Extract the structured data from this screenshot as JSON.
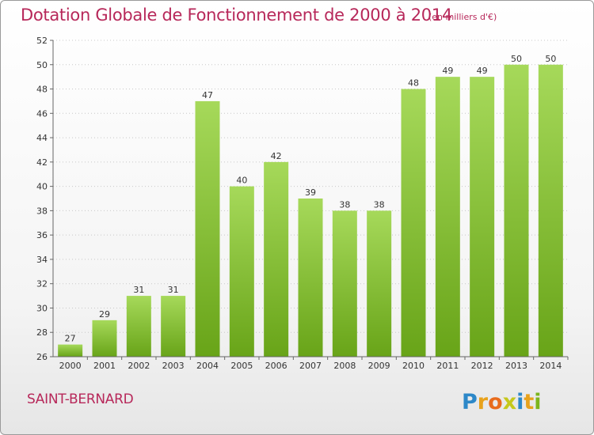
{
  "title": "Dotation Globale de Fonctionnement de 2000 à 2014",
  "unit_note": "(en milliers d'€)",
  "place": "SAINT-BERNARD",
  "brand": {
    "letters": [
      "P",
      "r",
      "o",
      "x",
      "i",
      "t",
      "i"
    ],
    "colors": [
      "#2d88c8",
      "#e8a21c",
      "#e86b1c",
      "#c5c81c",
      "#2d88c8",
      "#e8a21c",
      "#7cb51c"
    ]
  },
  "colors": {
    "bar_light": "#a6d95a",
    "bar_dark": "#68a418",
    "accent": "#b7285a"
  },
  "chart_data": {
    "type": "bar",
    "categories": [
      "2000",
      "2001",
      "2002",
      "2003",
      "2004",
      "2005",
      "2006",
      "2007",
      "2008",
      "2009",
      "2010",
      "2011",
      "2012",
      "2013",
      "2014"
    ],
    "values": [
      27,
      29,
      31,
      31,
      47,
      40,
      42,
      39,
      38,
      38,
      48,
      49,
      49,
      50,
      50
    ],
    "ylim": [
      26,
      52
    ],
    "yticks": [
      26,
      28,
      30,
      32,
      34,
      36,
      38,
      40,
      42,
      44,
      46,
      48,
      50,
      52
    ],
    "grid": "horizontal dotted",
    "data_labels": true
  }
}
